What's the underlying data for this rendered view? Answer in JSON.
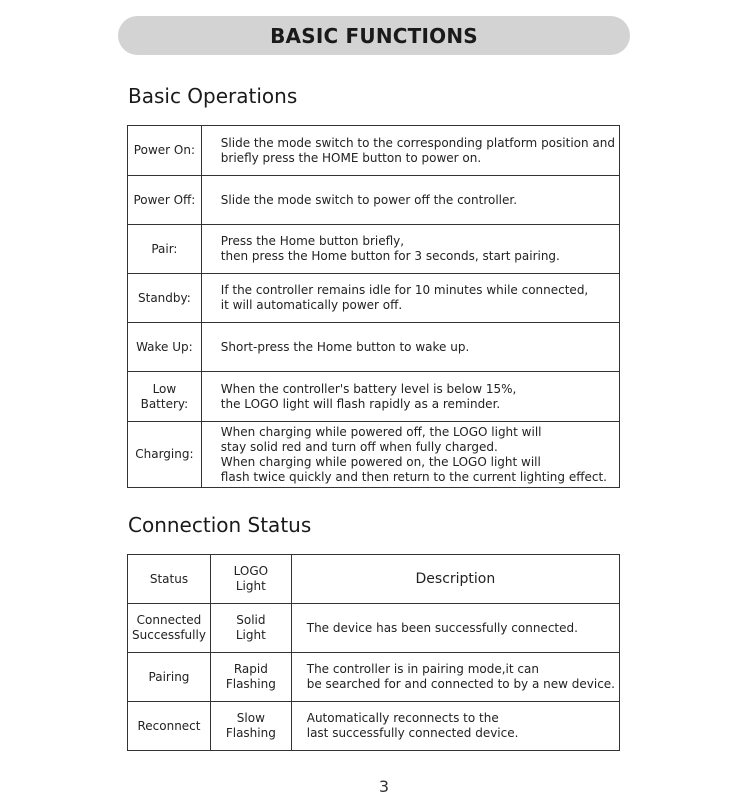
{
  "banner_title": "BASIC FUNCTIONS",
  "basic_operations": {
    "heading": "Basic Operations",
    "rows": [
      {
        "label": "Power On:",
        "lines": [
          "Slide the mode switch to the corresponding platform position and",
          "briefly press the HOME button to power on."
        ]
      },
      {
        "label": "Power Off:",
        "lines": [
          "Slide the mode switch to power off the controller."
        ]
      },
      {
        "label": "Pair:",
        "lines": [
          "Press the Home button briefly,",
          "then press the Home button for 3 seconds, start pairing."
        ]
      },
      {
        "label": "Standby:",
        "lines": [
          "If the controller remains idle for 10 minutes while connected,",
          "it will automatically power off."
        ]
      },
      {
        "label": "Wake Up:",
        "lines": [
          "Short-press the Home button to wake up."
        ]
      },
      {
        "label": "Low Battery:",
        "lines": [
          "When the controller's battery level is below 15%,",
          "the LOGO light will flash rapidly as a reminder."
        ]
      },
      {
        "label": "Charging:",
        "lines": [
          "When charging while powered off, the LOGO light will",
          "stay solid red and turn off when fully charged.",
          "When charging while powered on, the LOGO light will",
          "flash twice quickly and then return to the current lighting effect."
        ]
      }
    ]
  },
  "connection_status": {
    "heading": "Connection Status",
    "headers": {
      "status": "Status",
      "logo": [
        "LOGO",
        "Light"
      ],
      "description": "Description"
    },
    "rows": [
      {
        "status": [
          "Connected",
          "Successfully"
        ],
        "logo": [
          "Solid",
          "Light"
        ],
        "description": [
          "The device has been successfully connected."
        ]
      },
      {
        "status": [
          "Pairing"
        ],
        "logo": [
          "Rapid",
          "Flashing"
        ],
        "description": [
          "The controller is in pairing mode,it can",
          "be searched for and connected to by a new device."
        ]
      },
      {
        "status": [
          "Reconnect"
        ],
        "logo": [
          "Slow",
          "Flashing"
        ],
        "description": [
          "Automatically reconnects to the",
          "last successfully connected device."
        ]
      }
    ]
  },
  "page_number": "3"
}
